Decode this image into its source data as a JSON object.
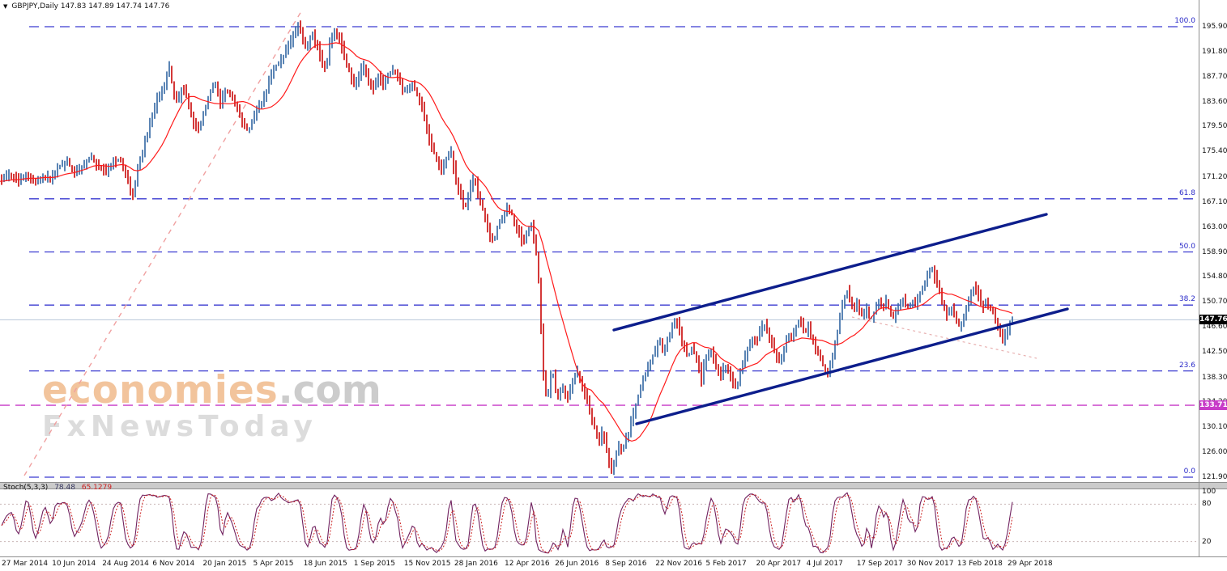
{
  "header": {
    "marker": "▼",
    "symbol_info": "GBPJPY,Daily 147.83 147.89 147.74 147.76"
  },
  "watermark": {
    "brand": "economies",
    "suffix": ".com",
    "subbrand": "FxNewsToday"
  },
  "chart_data": {
    "type": "candlestick",
    "symbol": "GBPJPY",
    "timeframe": "Daily",
    "title": "GBPJPY, Daily",
    "ohlc_display": {
      "open": "147.83",
      "high": "147.89",
      "low": "147.74",
      "close": "147.76"
    },
    "y_range": [
      121.9,
      195.9
    ],
    "y_axis": {
      "labels": [
        "195.90",
        "191.80",
        "187.70",
        "183.60",
        "179.50",
        "175.40",
        "171.20",
        "167.10",
        "163.00",
        "158.90",
        "154.80",
        "150.70",
        "146.60",
        "142.50",
        "138.30",
        "134.20",
        "130.10",
        "126.00",
        "121.90"
      ]
    },
    "x_axis": {
      "labels": [
        "27 Mar 2014",
        "10 Jun 2014",
        "24 Aug 2014",
        "6 Nov 2014",
        "20 Jan 2015",
        "5 Apr 2015",
        "18 Jun 2015",
        "1 Sep 2015",
        "15 Nov 2015",
        "28 Jan 2016",
        "12 Apr 2016",
        "26 Jun 2016",
        "8 Sep 2016",
        "22 Nov 2016",
        "5 Feb 2017",
        "20 Apr 2017",
        "4 Jul 2017",
        "17 Sep 2017",
        "30 Nov 2017",
        "13 Feb 2018",
        "29 Apr 2018"
      ]
    },
    "fibonacci": {
      "levels": [
        {
          "label": "100.0",
          "price": 195.9
        },
        {
          "label": "61.8",
          "price": 167.63
        },
        {
          "label": "50.0",
          "price": 158.9
        },
        {
          "label": "38.2",
          "price": 150.17
        },
        {
          "label": "23.6",
          "price": 139.36
        },
        {
          "label": "0.0",
          "price": 121.9
        }
      ]
    },
    "price_lines": [
      {
        "value": "147.76",
        "price": 147.76,
        "badge_bg": "#000000",
        "line_color": "#b8c6d8",
        "style": "solid"
      },
      {
        "value": "133.71",
        "price": 133.71,
        "badge_bg": "#c83cc8",
        "line_color": "#c83cc8",
        "style": "dashed"
      }
    ],
    "channel": [
      {
        "x1": 758,
        "y1": 408,
        "x2": 1292,
        "y2": 265
      },
      {
        "x1": 786,
        "y1": 524,
        "x2": 1318,
        "y2": 382
      }
    ],
    "trendlines": [
      {
        "x1": 30,
        "y1": 588,
        "x2": 372,
        "y2": 14,
        "color": "#f0a0a0",
        "width": 1.4,
        "dash": "6,6"
      },
      {
        "x1": 1052,
        "y1": 392,
        "x2": 1280,
        "y2": 443,
        "color": "#e8b0b0",
        "width": 1.2,
        "dash": "3,4"
      }
    ],
    "price_series": [
      [
        0,
        170.5
      ],
      [
        12,
        171.8
      ],
      [
        22,
        170.6
      ],
      [
        32,
        171.9
      ],
      [
        42,
        170.2
      ],
      [
        52,
        171.4
      ],
      [
        62,
        171.0
      ],
      [
        72,
        172.8
      ],
      [
        82,
        173.6
      ],
      [
        92,
        172.2
      ],
      [
        102,
        173.0
      ],
      [
        112,
        174.4
      ],
      [
        122,
        172.6
      ],
      [
        132,
        172.0
      ],
      [
        140,
        173.8
      ],
      [
        148,
        174.2
      ],
      [
        156,
        171.5
      ],
      [
        163,
        167.8
      ],
      [
        170,
        172.5
      ],
      [
        178,
        176.5
      ],
      [
        186,
        180.5
      ],
      [
        194,
        184.0
      ],
      [
        202,
        186.0
      ],
      [
        209,
        189.3
      ],
      [
        214,
        185.0
      ],
      [
        219,
        183.2
      ],
      [
        225,
        186.3
      ],
      [
        231,
        184.0
      ],
      [
        237,
        180.8
      ],
      [
        244,
        178.6
      ],
      [
        251,
        181.5
      ],
      [
        258,
        184.8
      ],
      [
        265,
        186.6
      ],
      [
        272,
        183.2
      ],
      [
        279,
        185.8
      ],
      [
        286,
        184.2
      ],
      [
        293,
        182.6
      ],
      [
        300,
        179.8
      ],
      [
        307,
        178.8
      ],
      [
        314,
        181.0
      ],
      [
        321,
        183.0
      ],
      [
        328,
        185.0
      ],
      [
        335,
        188.0
      ],
      [
        342,
        189.8
      ],
      [
        349,
        190.6
      ],
      [
        356,
        192.8
      ],
      [
        363,
        194.6
      ],
      [
        369,
        196.2
      ],
      [
        374,
        193.5
      ],
      [
        379,
        192.2
      ],
      [
        385,
        194.6
      ],
      [
        391,
        193.0
      ],
      [
        397,
        190.2
      ],
      [
        402,
        188.8
      ],
      [
        408,
        194.0
      ],
      [
        413,
        195.3
      ],
      [
        419,
        194.0
      ],
      [
        425,
        191.0
      ],
      [
        431,
        188.6
      ],
      [
        437,
        186.2
      ],
      [
        443,
        188.0
      ],
      [
        449,
        189.6
      ],
      [
        455,
        187.0
      ],
      [
        461,
        185.8
      ],
      [
        467,
        187.8
      ],
      [
        473,
        186.4
      ],
      [
        479,
        188.2
      ],
      [
        485,
        188.6
      ],
      [
        491,
        187.6
      ],
      [
        497,
        185.4
      ],
      [
        503,
        186.0
      ],
      [
        509,
        186.6
      ],
      [
        515,
        184.6
      ],
      [
        521,
        182.8
      ],
      [
        527,
        178.8
      ],
      [
        533,
        176.2
      ],
      [
        539,
        174.0
      ],
      [
        545,
        172.6
      ],
      [
        551,
        174.2
      ],
      [
        556,
        176.0
      ],
      [
        561,
        172.0
      ],
      [
        566,
        169.4
      ],
      [
        571,
        167.0
      ],
      [
        576,
        166.4
      ],
      [
        581,
        169.8
      ],
      [
        586,
        171.0
      ],
      [
        591,
        168.2
      ],
      [
        596,
        165.8
      ],
      [
        601,
        163.4
      ],
      [
        606,
        160.8
      ],
      [
        611,
        161.4
      ],
      [
        616,
        163.8
      ],
      [
        621,
        164.6
      ],
      [
        626,
        166.2
      ],
      [
        631,
        165.4
      ],
      [
        636,
        163.6
      ],
      [
        641,
        162.0
      ],
      [
        646,
        160.2
      ],
      [
        651,
        162.4
      ],
      [
        656,
        163.6
      ],
      [
        660,
        160.6
      ],
      [
        664,
        157.0
      ],
      [
        667,
        149.0
      ],
      [
        670,
        140.0
      ],
      [
        673,
        136.0
      ],
      [
        676,
        134.0
      ],
      [
        679,
        138.4
      ],
      [
        682,
        139.6
      ],
      [
        685,
        136.8
      ],
      [
        688,
        134.6
      ],
      [
        691,
        135.4
      ],
      [
        694,
        137.6
      ],
      [
        697,
        135.2
      ],
      [
        700,
        134.4
      ],
      [
        704,
        136.2
      ],
      [
        708,
        138.0
      ],
      [
        712,
        139.6
      ],
      [
        716,
        138.0
      ],
      [
        720,
        136.4
      ],
      [
        724,
        134.8
      ],
      [
        728,
        132.6
      ],
      [
        732,
        130.8
      ],
      [
        736,
        129.4
      ],
      [
        740,
        128.0
      ],
      [
        744,
        129.6
      ],
      [
        748,
        126.8
      ],
      [
        752,
        124.4
      ],
      [
        756,
        122.6
      ],
      [
        760,
        125.2
      ],
      [
        764,
        127.0
      ],
      [
        768,
        126.2
      ],
      [
        772,
        127.8
      ],
      [
        776,
        129.0
      ],
      [
        780,
        131.4
      ],
      [
        785,
        133.8
      ],
      [
        790,
        136.0
      ],
      [
        795,
        138.2
      ],
      [
        800,
        139.8
      ],
      [
        805,
        141.6
      ],
      [
        810,
        143.0
      ],
      [
        814,
        144.8
      ],
      [
        818,
        142.6
      ],
      [
        822,
        143.8
      ],
      [
        826,
        145.2
      ],
      [
        830,
        146.8
      ],
      [
        834,
        148.0
      ],
      [
        838,
        146.2
      ],
      [
        842,
        144.0
      ],
      [
        846,
        142.6
      ],
      [
        850,
        141.8
      ],
      [
        854,
        143.2
      ],
      [
        858,
        142.0
      ],
      [
        862,
        140.6
      ],
      [
        866,
        137.8
      ],
      [
        870,
        141.0
      ],
      [
        874,
        141.8
      ],
      [
        878,
        142.6
      ],
      [
        882,
        141.0
      ],
      [
        886,
        139.4
      ],
      [
        890,
        138.8
      ],
      [
        894,
        140.4
      ],
      [
        898,
        139.6
      ],
      [
        902,
        138.6
      ],
      [
        906,
        137.2
      ],
      [
        910,
        136.6
      ],
      [
        914,
        139.0
      ],
      [
        918,
        141.2
      ],
      [
        922,
        142.8
      ],
      [
        926,
        144.2
      ],
      [
        930,
        145.0
      ],
      [
        934,
        144.0
      ],
      [
        938,
        145.6
      ],
      [
        942,
        147.2
      ],
      [
        946,
        146.4
      ],
      [
        950,
        144.6
      ],
      [
        954,
        143.6
      ],
      [
        958,
        141.8
      ],
      [
        962,
        140.8
      ],
      [
        966,
        142.2
      ],
      [
        970,
        143.8
      ],
      [
        974,
        145.4
      ],
      [
        978,
        144.6
      ],
      [
        982,
        146.2
      ],
      [
        986,
        147.6
      ],
      [
        990,
        146.8
      ],
      [
        994,
        145.6
      ],
      [
        998,
        146.4
      ],
      [
        1002,
        144.8
      ],
      [
        1006,
        143.4
      ],
      [
        1010,
        142.0
      ],
      [
        1014,
        140.8
      ],
      [
        1018,
        139.6
      ],
      [
        1022,
        139.0
      ],
      [
        1026,
        141.2
      ],
      [
        1030,
        143.0
      ],
      [
        1034,
        145.6
      ],
      [
        1038,
        148.6
      ],
      [
        1042,
        151.4
      ],
      [
        1046,
        152.4
      ],
      [
        1050,
        150.6
      ],
      [
        1054,
        149.2
      ],
      [
        1058,
        150.4
      ],
      [
        1062,
        149.0
      ],
      [
        1066,
        148.4
      ],
      [
        1070,
        149.8
      ],
      [
        1074,
        147.6
      ],
      [
        1078,
        148.6
      ],
      [
        1082,
        149.8
      ],
      [
        1086,
        150.6
      ],
      [
        1090,
        149.2
      ],
      [
        1094,
        150.8
      ],
      [
        1098,
        149.4
      ],
      [
        1102,
        147.8
      ],
      [
        1106,
        148.8
      ],
      [
        1110,
        150.0
      ],
      [
        1114,
        151.2
      ],
      [
        1118,
        150.2
      ],
      [
        1122,
        149.6
      ],
      [
        1126,
        151.0
      ],
      [
        1130,
        150.0
      ],
      [
        1134,
        151.6
      ],
      [
        1138,
        152.8
      ],
      [
        1142,
        153.8
      ],
      [
        1146,
        155.2
      ],
      [
        1150,
        156.4
      ],
      [
        1154,
        154.8
      ],
      [
        1158,
        153.0
      ],
      [
        1162,
        151.2
      ],
      [
        1166,
        149.8
      ],
      [
        1170,
        148.2
      ],
      [
        1174,
        150.0
      ],
      [
        1178,
        148.8
      ],
      [
        1182,
        147.4
      ],
      [
        1186,
        146.4
      ],
      [
        1190,
        148.6
      ],
      [
        1194,
        150.2
      ],
      [
        1198,
        151.6
      ],
      [
        1202,
        153.0
      ],
      [
        1206,
        152.2
      ],
      [
        1210,
        151.0
      ],
      [
        1214,
        149.8
      ],
      [
        1218,
        150.6
      ],
      [
        1222,
        149.6
      ],
      [
        1226,
        148.8
      ],
      [
        1230,
        147.6
      ],
      [
        1234,
        145.8
      ],
      [
        1238,
        144.2
      ],
      [
        1242,
        145.6
      ],
      [
        1246,
        146.8
      ],
      [
        1250,
        147.8
      ]
    ],
    "indicator": {
      "name": "Stoch(5,3,3)",
      "k_value": "78.48",
      "d_value": "65.1279",
      "axis_labels": [
        "100",
        "80",
        "20"
      ],
      "levels": [
        80,
        20
      ]
    },
    "colors": {
      "up": "#3d6fa8",
      "down": "#cc1616",
      "ma": "#ff1a1a",
      "fib": "#3a3ad0",
      "channel": "#0d1e8c",
      "stoch_k": "#70215f",
      "stoch_d": "#cc2020"
    }
  }
}
